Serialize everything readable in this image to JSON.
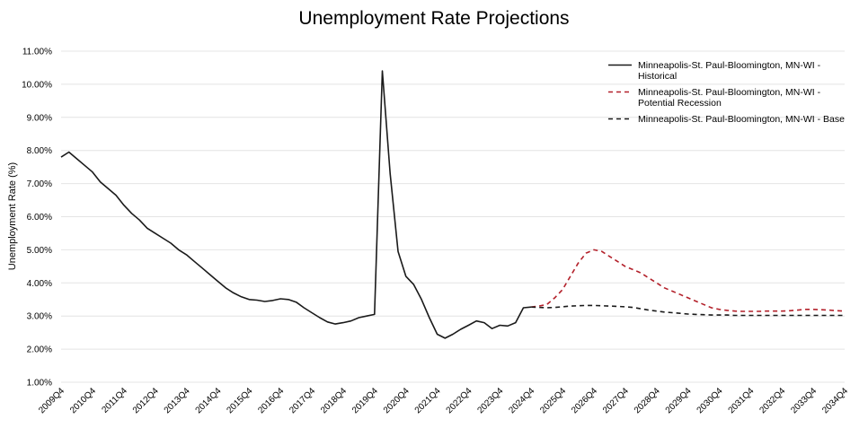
{
  "chart_data": {
    "type": "line",
    "title": "Unemployment Rate Projections",
    "xlabel": "",
    "ylabel": "Unemployment Rate (%)",
    "ylim": [
      1.0,
      11.0
    ],
    "ytick_labels": [
      "1.00%",
      "2.00%",
      "3.00%",
      "4.00%",
      "5.00%",
      "6.00%",
      "7.00%",
      "8.00%",
      "9.00%",
      "10.00%",
      "11.00%"
    ],
    "xtick_labels": [
      "2009Q4",
      "2010Q4",
      "2011Q4",
      "2012Q4",
      "2013Q4",
      "2014Q4",
      "2015Q4",
      "2016Q4",
      "2017Q4",
      "2018Q4",
      "2019Q4",
      "2020Q4",
      "2021Q4",
      "2022Q4",
      "2023Q4",
      "2024Q4",
      "2025Q4",
      "2026Q4",
      "2027Q4",
      "2028Q4",
      "2029Q4",
      "2030Q4",
      "2031Q4",
      "2032Q4",
      "2033Q4",
      "2034Q4"
    ],
    "grid": true,
    "legend_position": "top-right",
    "x_start": "2009Q4",
    "x_end": "2034Q4",
    "series": [
      {
        "name": "Minneapolis-St. Paul-Bloomington, MN-WI - Historical",
        "legend_lines": [
          "Minneapolis-St. Paul-Bloomington, MN-WI -",
          "Historical"
        ],
        "color": "#1a1a1a",
        "dash": "solid",
        "x": [
          "2009Q4",
          "2010Q1",
          "2010Q2",
          "2010Q3",
          "2010Q4",
          "2011Q1",
          "2011Q2",
          "2011Q3",
          "2011Q4",
          "2012Q1",
          "2012Q2",
          "2012Q3",
          "2012Q4",
          "2013Q1",
          "2013Q2",
          "2013Q3",
          "2013Q4",
          "2014Q1",
          "2014Q2",
          "2014Q3",
          "2014Q4",
          "2015Q1",
          "2015Q2",
          "2015Q3",
          "2015Q4",
          "2016Q1",
          "2016Q2",
          "2016Q3",
          "2016Q4",
          "2017Q1",
          "2017Q2",
          "2017Q3",
          "2017Q4",
          "2018Q1",
          "2018Q2",
          "2018Q3",
          "2018Q4",
          "2019Q1",
          "2019Q2",
          "2019Q3",
          "2019Q4",
          "2020Q1",
          "2020Q2",
          "2020Q3",
          "2020Q4",
          "2021Q1",
          "2021Q2",
          "2021Q3",
          "2021Q4",
          "2022Q1",
          "2022Q2",
          "2022Q3",
          "2022Q4",
          "2023Q1",
          "2023Q2",
          "2023Q3",
          "2023Q4",
          "2024Q1",
          "2024Q2",
          "2024Q3",
          "2024Q4"
        ],
        "values": [
          7.8,
          7.95,
          7.75,
          7.55,
          7.35,
          7.05,
          6.85,
          6.65,
          6.35,
          6.1,
          5.9,
          5.65,
          5.5,
          5.35,
          5.2,
          5.0,
          4.85,
          4.65,
          4.45,
          4.25,
          4.05,
          3.85,
          3.7,
          3.58,
          3.5,
          3.48,
          3.44,
          3.47,
          3.52,
          3.5,
          3.42,
          3.25,
          3.1,
          2.95,
          2.82,
          2.76,
          2.8,
          2.85,
          2.95,
          3.0,
          3.05,
          10.4,
          7.3,
          4.95,
          4.2,
          3.95,
          3.5,
          2.95,
          2.45,
          2.33,
          2.45,
          2.6,
          2.72,
          2.85,
          2.8,
          2.62,
          2.72,
          2.7,
          2.8,
          3.25,
          3.27
        ]
      },
      {
        "name": "Minneapolis-St. Paul-Bloomington, MN-WI - Potential Recession",
        "legend_lines": [
          "Minneapolis-St. Paul-Bloomington, MN-WI -",
          "Potential Recession"
        ],
        "color": "#b3202a",
        "dash": "dashed",
        "x": [
          "2024Q4",
          "2025Q1",
          "2025Q2",
          "2025Q3",
          "2025Q4",
          "2026Q1",
          "2026Q2",
          "2026Q3",
          "2026Q4",
          "2027Q1",
          "2027Q2",
          "2027Q3",
          "2027Q4",
          "2028Q1",
          "2028Q2",
          "2028Q3",
          "2028Q4",
          "2029Q1",
          "2029Q2",
          "2029Q3",
          "2029Q4",
          "2030Q1",
          "2030Q2",
          "2030Q3",
          "2030Q4",
          "2031Q1",
          "2031Q2",
          "2031Q3",
          "2031Q4",
          "2032Q1",
          "2032Q2",
          "2032Q3",
          "2032Q4",
          "2033Q1",
          "2033Q2",
          "2033Q3",
          "2033Q4",
          "2034Q1",
          "2034Q2",
          "2034Q3",
          "2034Q4"
        ],
        "values": [
          3.27,
          3.3,
          3.35,
          3.55,
          3.8,
          4.2,
          4.6,
          4.9,
          5.0,
          4.95,
          4.8,
          4.65,
          4.5,
          4.4,
          4.3,
          4.15,
          4.0,
          3.85,
          3.75,
          3.65,
          3.55,
          3.45,
          3.35,
          3.25,
          3.2,
          3.17,
          3.15,
          3.14,
          3.14,
          3.14,
          3.15,
          3.15,
          3.15,
          3.16,
          3.18,
          3.2,
          3.2,
          3.19,
          3.18,
          3.16,
          3.15
        ]
      },
      {
        "name": "Minneapolis-St. Paul-Bloomington, MN-WI - Base",
        "legend_lines": [
          "Minneapolis-St. Paul-Bloomington, MN-WI - Base"
        ],
        "color": "#1a1a1a",
        "dash": "dashed",
        "x": [
          "2024Q4",
          "2025Q1",
          "2025Q2",
          "2025Q3",
          "2025Q4",
          "2026Q1",
          "2026Q2",
          "2026Q3",
          "2026Q4",
          "2027Q1",
          "2027Q2",
          "2027Q3",
          "2027Q4",
          "2028Q1",
          "2028Q2",
          "2028Q3",
          "2028Q4",
          "2029Q1",
          "2029Q2",
          "2029Q3",
          "2029Q4",
          "2030Q1",
          "2030Q2",
          "2030Q3",
          "2030Q4",
          "2031Q1",
          "2031Q2",
          "2031Q3",
          "2031Q4",
          "2032Q1",
          "2032Q2",
          "2032Q3",
          "2032Q4",
          "2033Q1",
          "2033Q2",
          "2033Q3",
          "2033Q4",
          "2034Q1",
          "2034Q2",
          "2034Q3",
          "2034Q4"
        ],
        "values": [
          3.27,
          3.26,
          3.25,
          3.26,
          3.28,
          3.3,
          3.31,
          3.32,
          3.32,
          3.31,
          3.3,
          3.29,
          3.28,
          3.26,
          3.22,
          3.18,
          3.15,
          3.12,
          3.1,
          3.08,
          3.06,
          3.05,
          3.04,
          3.03,
          3.03,
          3.03,
          3.02,
          3.02,
          3.02,
          3.02,
          3.02,
          3.02,
          3.02,
          3.02,
          3.02,
          3.02,
          3.02,
          3.02,
          3.02,
          3.02,
          3.02
        ]
      }
    ]
  }
}
